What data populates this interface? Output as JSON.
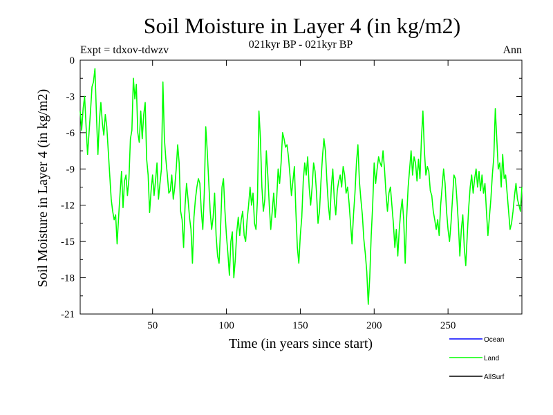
{
  "chart_data": {
    "type": "line",
    "title": "Soil Moisture in Layer 4 (in kg/m2)",
    "subtitle": "021kyr BP - 021kyr BP",
    "left_note": "Expt = tdxov-tdwzv",
    "right_note": "Ann",
    "xlabel": "Time (in years since start)",
    "ylabel": "Soil Moisture in Layer 4 (in kg/m2)",
    "xlim": [
      1,
      300
    ],
    "ylim": [
      -21,
      0
    ],
    "x_ticks": [
      50,
      100,
      150,
      200,
      250
    ],
    "x_tick_labels": [
      "50",
      "100",
      "150",
      "200",
      "250"
    ],
    "y_ticks": [
      0,
      -3,
      -6,
      -9,
      -12,
      -15,
      -18,
      -21
    ],
    "y_tick_labels": [
      "0",
      "-3",
      "-6",
      "-9",
      "-12",
      "-15",
      "-18",
      "-21"
    ],
    "grid": false,
    "legend_position": "bottom-right",
    "legend": [
      {
        "label": "Ocean",
        "color": "#0000ff"
      },
      {
        "label": "Land",
        "color": "#00ff00"
      },
      {
        "label": "AllSurf",
        "color": "#000000"
      }
    ],
    "series": [
      {
        "name": "Land",
        "color": "#00ff00",
        "x": [
          1,
          2,
          3,
          4,
          5,
          6,
          7,
          8,
          9,
          10,
          11,
          12,
          13,
          14,
          15,
          16,
          17,
          18,
          19,
          20,
          21,
          22,
          23,
          24,
          25,
          26,
          27,
          28,
          29,
          30,
          31,
          32,
          33,
          34,
          35,
          36,
          37,
          38,
          39,
          40,
          41,
          42,
          43,
          44,
          45,
          46,
          47,
          48,
          49,
          50,
          51,
          52,
          53,
          54,
          55,
          56,
          57,
          58,
          59,
          60,
          61,
          62,
          63,
          64,
          65,
          66,
          67,
          68,
          69,
          70,
          71,
          72,
          73,
          74,
          75,
          76,
          77,
          78,
          79,
          80,
          81,
          82,
          83,
          84,
          85,
          86,
          87,
          88,
          89,
          90,
          91,
          92,
          93,
          94,
          95,
          96,
          97,
          98,
          99,
          100,
          101,
          102,
          103,
          104,
          105,
          106,
          107,
          108,
          109,
          110,
          111,
          112,
          113,
          114,
          115,
          116,
          117,
          118,
          119,
          120,
          121,
          122,
          123,
          124,
          125,
          126,
          127,
          128,
          129,
          130,
          131,
          132,
          133,
          134,
          135,
          136,
          137,
          138,
          139,
          140,
          141,
          142,
          143,
          144,
          145,
          146,
          147,
          148,
          149,
          150,
          151,
          152,
          153,
          154,
          155,
          156,
          157,
          158,
          159,
          160,
          161,
          162,
          163,
          164,
          165,
          166,
          167,
          168,
          169,
          170,
          171,
          172,
          173,
          174,
          175,
          176,
          177,
          178,
          179,
          180,
          181,
          182,
          183,
          184,
          185,
          186,
          187,
          188,
          189,
          190,
          191,
          192,
          193,
          194,
          195,
          196,
          197,
          198,
          199,
          200,
          201,
          202,
          203,
          204,
          205,
          206,
          207,
          208,
          209,
          210,
          211,
          212,
          213,
          214,
          215,
          216,
          217,
          218,
          219,
          220,
          221,
          222,
          223,
          224,
          225,
          226,
          227,
          228,
          229,
          230,
          231,
          232,
          233,
          234,
          235,
          236,
          237,
          238,
          239,
          240,
          241,
          242,
          243,
          244,
          245,
          246,
          247,
          248,
          249,
          250,
          251,
          252,
          253,
          254,
          255,
          256,
          257,
          258,
          259,
          260,
          261,
          262,
          263,
          264,
          265,
          266,
          267,
          268,
          269,
          270,
          271,
          272,
          273,
          274,
          275,
          276,
          277,
          278,
          279,
          280,
          281,
          282,
          283,
          284,
          285,
          286,
          287,
          288,
          289,
          290,
          291,
          292,
          293,
          294,
          295,
          296,
          297,
          298,
          299,
          300
        ],
        "y": [
          -4.2,
          -5.8,
          -4.0,
          -3.0,
          -5.5,
          -7.8,
          -6.0,
          -4.2,
          -2.2,
          -1.8,
          -0.7,
          -4.5,
          -7.8,
          -5.0,
          -3.5,
          -5.2,
          -6.2,
          -4.5,
          -5.5,
          -7.5,
          -9.5,
          -11.5,
          -12.5,
          -13.2,
          -12.8,
          -15.2,
          -13.0,
          -11.0,
          -9.2,
          -12.2,
          -10.0,
          -9.5,
          -11.2,
          -9.8,
          -6.5,
          -5.8,
          -1.5,
          -3.2,
          -2.0,
          -6.0,
          -6.8,
          -4.2,
          -6.5,
          -4.5,
          -3.5,
          -8.2,
          -9.5,
          -12.6,
          -10.8,
          -9.5,
          -11.2,
          -10.0,
          -8.5,
          -11.5,
          -10.2,
          -9.0,
          -1.8,
          -6.5,
          -8.2,
          -9.5,
          -11.0,
          -10.8,
          -9.5,
          -11.5,
          -10.5,
          -9.0,
          -7.0,
          -8.5,
          -12.5,
          -13.2,
          -15.5,
          -12.0,
          -10.2,
          -11.5,
          -13.0,
          -14.0,
          -16.8,
          -13.0,
          -11.5,
          -10.5,
          -9.8,
          -10.2,
          -12.5,
          -14.0,
          -11.0,
          -5.5,
          -7.5,
          -10.0,
          -12.5,
          -14.0,
          -13.0,
          -11.0,
          -14.5,
          -16.2,
          -16.8,
          -14.0,
          -10.5,
          -9.8,
          -12.5,
          -14.5,
          -16.0,
          -17.8,
          -15.0,
          -14.2,
          -18.0,
          -16.5,
          -14.2,
          -13.0,
          -14.5,
          -13.2,
          -12.5,
          -14.5,
          -15.0,
          -13.2,
          -12.0,
          -10.5,
          -12.0,
          -11.0,
          -13.5,
          -14.0,
          -11.5,
          -4.2,
          -6.5,
          -10.5,
          -12.5,
          -11.5,
          -7.5,
          -9.5,
          -12.0,
          -14.0,
          -12.5,
          -11.0,
          -13.0,
          -11.5,
          -9.0,
          -10.2,
          -8.5,
          -6.0,
          -6.5,
          -7.2,
          -7.0,
          -8.0,
          -9.5,
          -11.2,
          -10.0,
          -8.8,
          -12.5,
          -15.5,
          -16.8,
          -14.5,
          -13.0,
          -10.0,
          -8.5,
          -9.5,
          -8.0,
          -10.5,
          -12.0,
          -10.5,
          -8.5,
          -9.2,
          -11.0,
          -13.5,
          -12.5,
          -10.0,
          -8.0,
          -6.5,
          -7.5,
          -10.0,
          -12.0,
          -13.2,
          -10.5,
          -9.0,
          -11.5,
          -12.8,
          -10.8,
          -10.0,
          -9.5,
          -10.5,
          -8.8,
          -9.5,
          -11.0,
          -10.5,
          -11.8,
          -13.5,
          -15.2,
          -12.8,
          -11.0,
          -8.5,
          -7.0,
          -10.0,
          -11.5,
          -12.8,
          -14.8,
          -16.0,
          -17.5,
          -20.2,
          -18.0,
          -14.5,
          -12.0,
          -8.5,
          -10.2,
          -9.0,
          -8.0,
          -8.5,
          -8.8,
          -7.5,
          -9.0,
          -11.0,
          -12.5,
          -11.0,
          -10.5,
          -12.0,
          -13.5,
          -15.5,
          -14.0,
          -16.2,
          -14.0,
          -12.5,
          -11.5,
          -13.2,
          -16.8,
          -13.0,
          -10.5,
          -9.0,
          -7.5,
          -9.5,
          -8.0,
          -8.5,
          -10.0,
          -8.2,
          -9.8,
          -6.5,
          -4.2,
          -7.5,
          -9.5,
          -8.8,
          -9.2,
          -10.8,
          -11.2,
          -12.5,
          -13.2,
          -14.0,
          -13.2,
          -14.5,
          -12.0,
          -10.5,
          -9.0,
          -10.2,
          -12.5,
          -14.0,
          -15.0,
          -13.5,
          -11.5,
          -9.5,
          -9.8,
          -11.5,
          -13.5,
          -16.2,
          -14.0,
          -12.8,
          -15.5,
          -17.0,
          -14.5,
          -12.2,
          -10.5,
          -9.5,
          -11.0,
          -9.8,
          -9.0,
          -10.5,
          -9.2,
          -10.8,
          -9.5,
          -11.0,
          -10.2,
          -12.5,
          -14.5,
          -13.0,
          -11.5,
          -9.5,
          -8.0,
          -4.0,
          -6.5,
          -9.0,
          -8.5,
          -10.5,
          -7.8,
          -9.8,
          -9.5,
          -11.0,
          -12.5,
          -14.0,
          -13.5,
          -12.5,
          -11.2,
          -10.2,
          -11.5,
          -12.0,
          -12.5,
          -10.5
        ]
      }
    ]
  }
}
